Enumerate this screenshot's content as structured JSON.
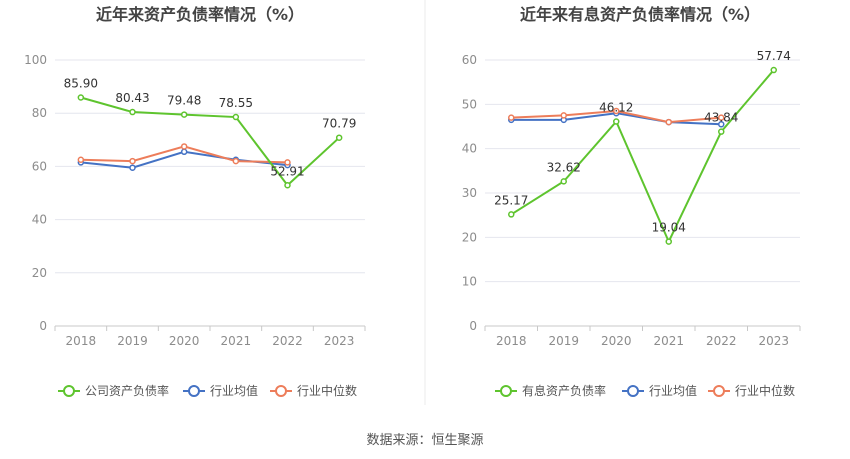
{
  "source_text": "数据来源：恒生聚源",
  "colors": {
    "company": "#5ec42e",
    "industry_avg": "#4472c4",
    "industry_median": "#ed7d5a",
    "axis_text": "#8c8c8c",
    "label_text": "#333333",
    "grid": "#e4e6ee",
    "title_text": "#444444"
  },
  "chart_data": [
    {
      "type": "line",
      "title": "近年来资产负债率情况（%）",
      "categories": [
        "2018",
        "2019",
        "2020",
        "2021",
        "2022",
        "2023"
      ],
      "ylim": [
        0,
        100
      ],
      "yticks": [
        0,
        20,
        40,
        60,
        80,
        100
      ],
      "grid": true,
      "legend_position": "bottom",
      "series": [
        {
          "name": "公司资产负债率",
          "role": "company",
          "values": [
            85.9,
            80.43,
            79.48,
            78.55,
            52.91,
            70.79
          ],
          "labels": [
            "85.90",
            "80.43",
            "79.48",
            "78.55",
            "52.91",
            "70.79"
          ]
        },
        {
          "name": "行业均值",
          "role": "industry_avg",
          "values": [
            61.5,
            59.5,
            65.5,
            62.5,
            60.5,
            null
          ]
        },
        {
          "name": "行业中位数",
          "role": "industry_median",
          "values": [
            62.5,
            62.0,
            67.5,
            62.0,
            61.5,
            null
          ]
        }
      ]
    },
    {
      "type": "line",
      "title": "近年来有息资产负债率情况（%）",
      "categories": [
        "2018",
        "2019",
        "2020",
        "2021",
        "2022",
        "2023"
      ],
      "ylim": [
        0,
        60
      ],
      "yticks": [
        0,
        10,
        20,
        30,
        40,
        50,
        60
      ],
      "grid": true,
      "legend_position": "bottom",
      "series": [
        {
          "name": "有息资产负债率",
          "role": "company",
          "values": [
            25.17,
            32.62,
            46.12,
            19.04,
            43.84,
            57.74
          ],
          "labels": [
            "25.17",
            "32.62",
            "46.12",
            "19.04",
            "43.84",
            "57.74"
          ]
        },
        {
          "name": "行业均值",
          "role": "industry_avg",
          "values": [
            46.5,
            46.5,
            48.0,
            46.0,
            45.5,
            null
          ]
        },
        {
          "name": "行业中位数",
          "role": "industry_median",
          "values": [
            47.0,
            47.5,
            48.5,
            46.0,
            47.0,
            null
          ]
        }
      ]
    }
  ]
}
